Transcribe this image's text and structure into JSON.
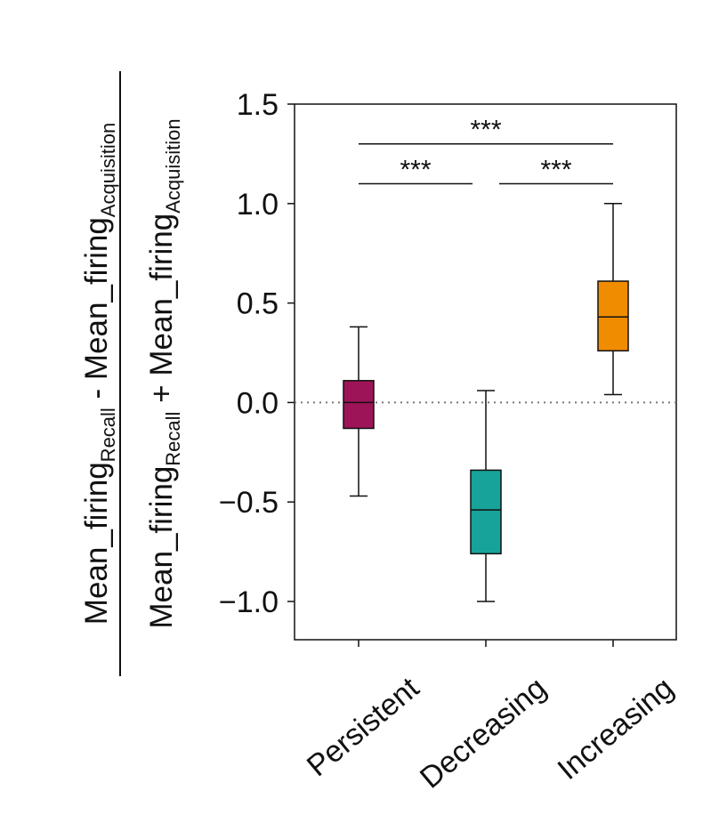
{
  "chart_data": {
    "type": "box",
    "categories": [
      "Persistent",
      "Decreasing",
      "Increasing"
    ],
    "boxes": [
      {
        "category": "Persistent",
        "whisker_low": -0.47,
        "q1": -0.13,
        "median": 0.0,
        "q3": 0.11,
        "whisker_high": 0.38,
        "color": "#9E1458"
      },
      {
        "category": "Decreasing",
        "whisker_low": -1.0,
        "q1": -0.76,
        "median": -0.54,
        "q3": -0.34,
        "whisker_high": 0.06,
        "color": "#17A399"
      },
      {
        "category": "Increasing",
        "whisker_low": 0.04,
        "q1": 0.26,
        "median": 0.43,
        "q3": 0.61,
        "whisker_high": 1.0,
        "color": "#F08C00"
      }
    ],
    "yticks": [
      "1.5",
      "1.0",
      "0.5",
      "0.0",
      "−0.5",
      "−1.0"
    ],
    "ytick_values": [
      1.5,
      1.0,
      0.5,
      0.0,
      -0.5,
      -1.0
    ],
    "ylim": [
      -1.2,
      1.5
    ],
    "reference_line": {
      "y": 0.0,
      "style": "dotted"
    },
    "ylabel": {
      "numerator": {
        "a": "Mean_firing",
        "a_sub": "Recall",
        "op": " - ",
        "b": "Mean_firing",
        "b_sub": "Acquisition"
      },
      "denominator": {
        "a": "Mean_firing",
        "a_sub": "Recall",
        "op": " + ",
        "b": "Mean_firing",
        "b_sub": "Acquisition"
      }
    },
    "significance": [
      {
        "from": "Persistent",
        "to": "Increasing",
        "y": 1.3,
        "label": "***"
      },
      {
        "from": "Persistent",
        "to": "Decreasing",
        "y": 1.1,
        "label": "***"
      },
      {
        "from": "Decreasing",
        "to": "Increasing",
        "y": 1.1,
        "label": "***"
      }
    ],
    "grid": false,
    "legend": "none"
  }
}
